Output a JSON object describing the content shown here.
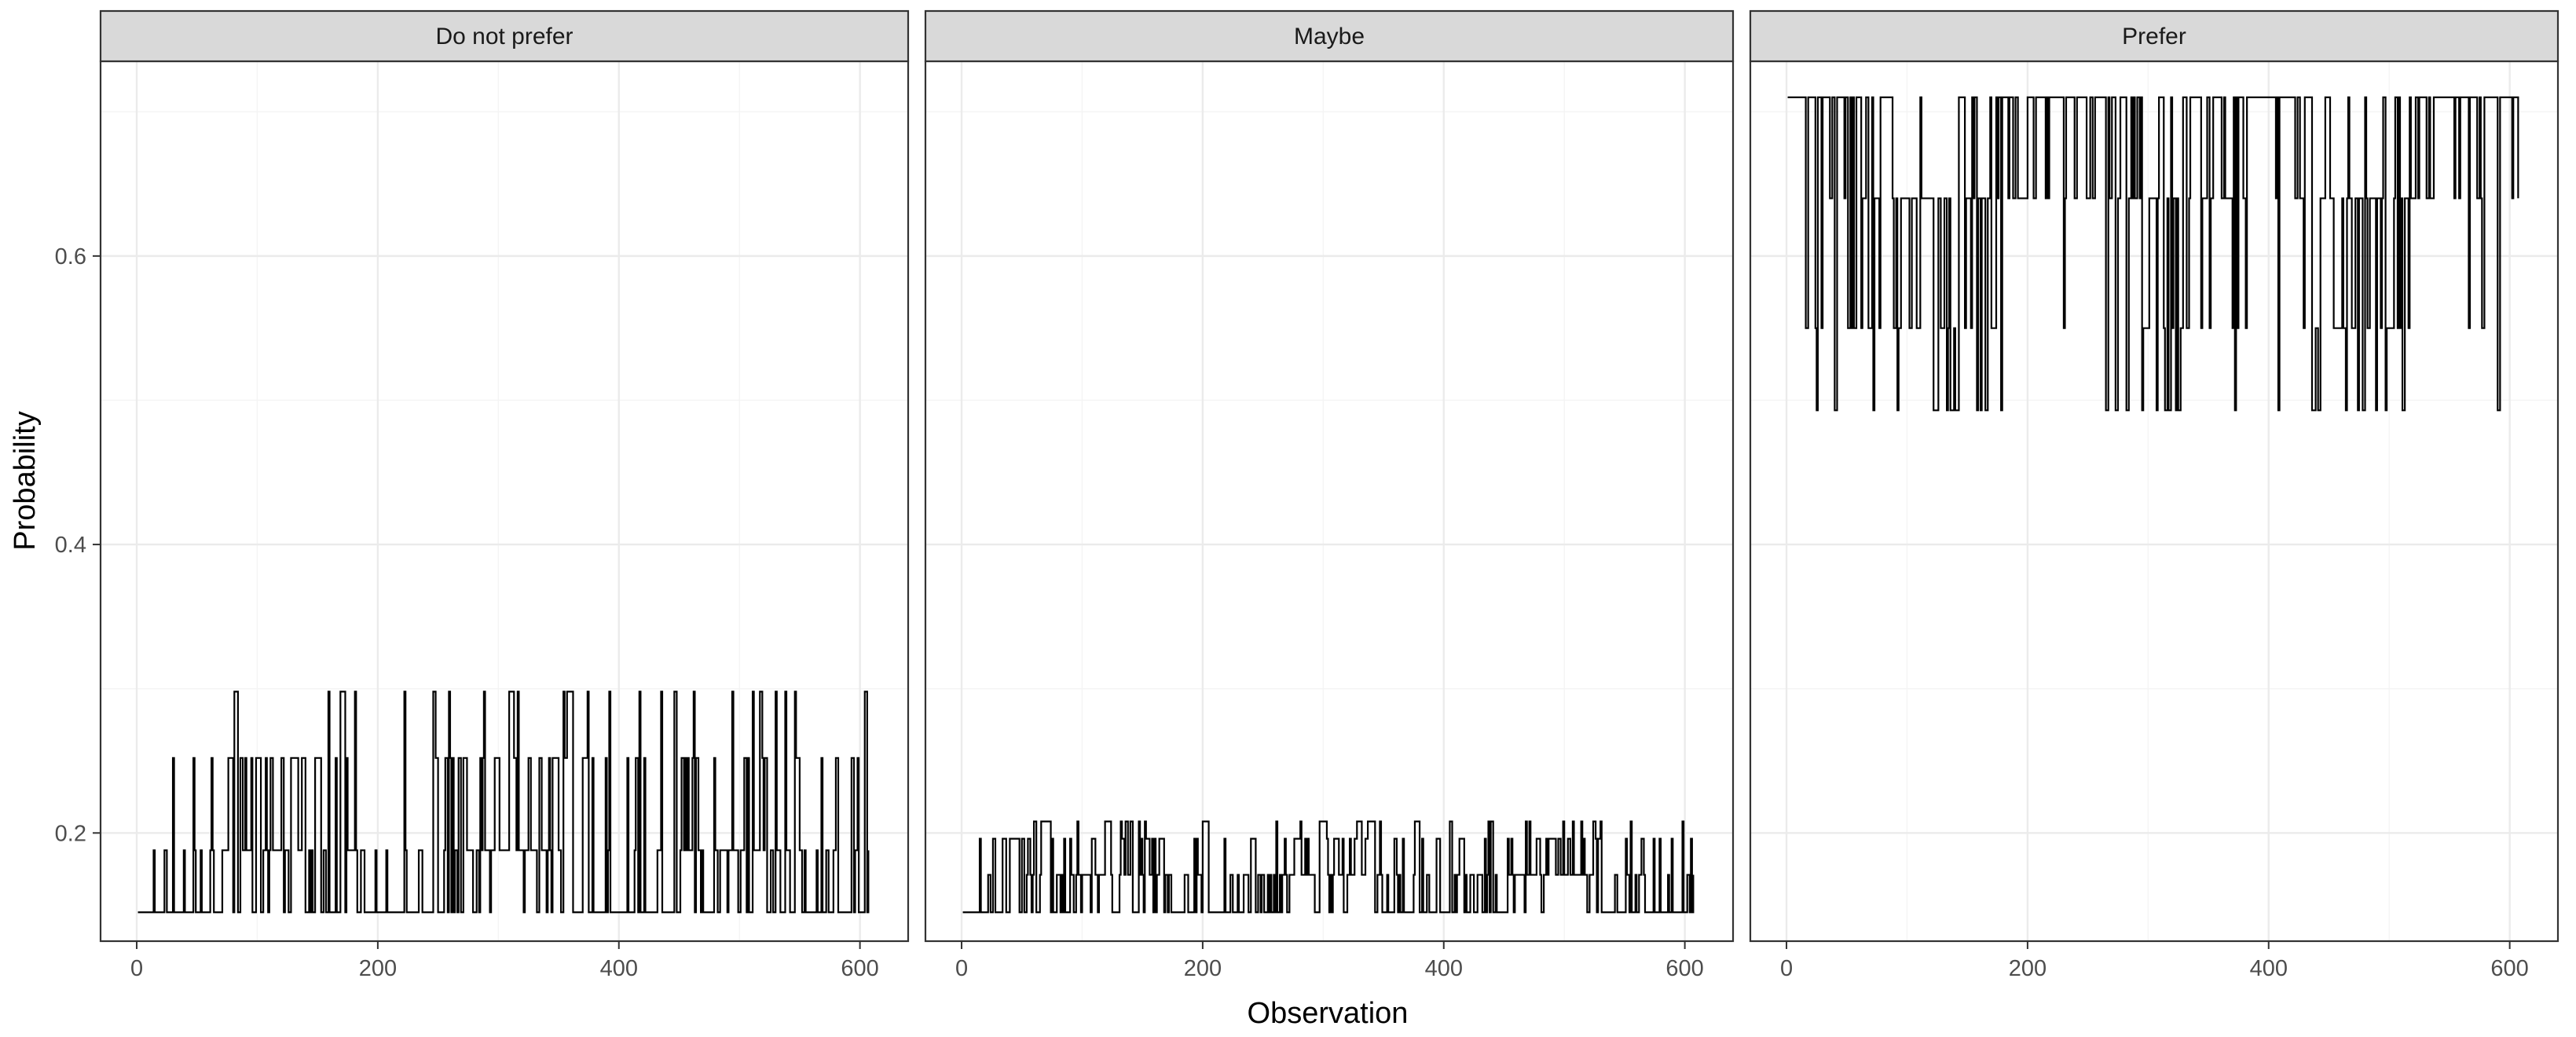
{
  "chart_data": {
    "type": "line",
    "theme": "ggplot2 theme_bw, faceted panels with grey strip headers",
    "xlabel": "Observation",
    "ylabel": "Probability",
    "xlim": [
      -30,
      640
    ],
    "ylim": [
      0.125,
      0.735
    ],
    "x_ticks": [
      0,
      200,
      400,
      600
    ],
    "y_ticks": [
      0.2,
      0.4,
      0.6
    ],
    "y_tick_labels": [
      "0.2",
      "0.4",
      "0.6"
    ],
    "x_tick_labels": [
      "0",
      "200",
      "400",
      "600"
    ],
    "n_observations": 607,
    "grid": true,
    "line_color": "#000000",
    "colors": {
      "strip_fill": "#d9d9d9",
      "panel_border": "#333333",
      "grid_major": "#ebebeb",
      "grid_minor": "#f4f4f4"
    },
    "panels": [
      {
        "label": "Do not prefer",
        "levels": [
          0.145,
          0.188,
          0.252,
          0.298
        ],
        "description": "stepped series, mostly at 0.145 baseline with spikes to 0.188, 0.252 and 0.298"
      },
      {
        "label": "Maybe",
        "levels": [
          0.145,
          0.171,
          0.196,
          0.208
        ],
        "description": "stepped series, mostly at 0.145 baseline with spikes to 0.171, 0.196 and 0.208"
      },
      {
        "label": "Prefer",
        "levels": [
          0.71,
          0.64,
          0.55,
          0.493
        ],
        "description": "stepped series, mostly at 0.71 ceiling with dips to 0.64, 0.55 and 0.493"
      }
    ]
  }
}
